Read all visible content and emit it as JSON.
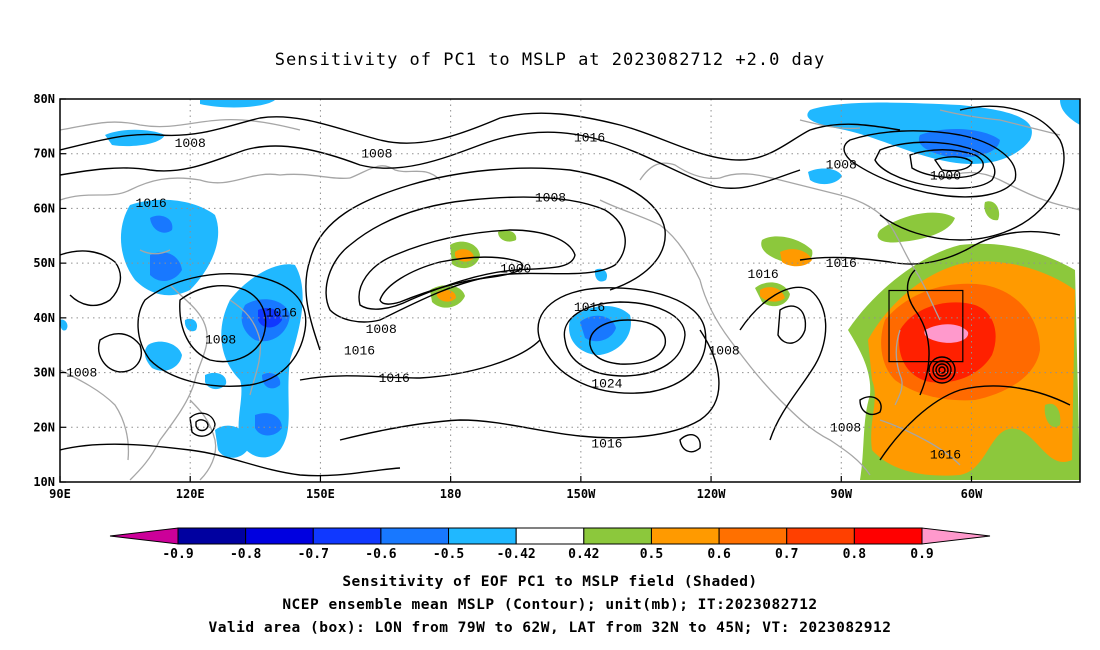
{
  "title": "Sensitivity of PC1 to MSLP at 2023082712 +2.0 day",
  "map": {
    "lon_labels": [
      "90E",
      "120E",
      "150E",
      "180",
      "150W",
      "120W",
      "90W",
      "60W"
    ],
    "lat_labels": [
      "80N",
      "70N",
      "60N",
      "50N",
      "40N",
      "30N",
      "20N",
      "10N"
    ],
    "contour_labels": [
      {
        "text": "1008",
        "lon": 120,
        "lat": 72
      },
      {
        "text": "1008",
        "lon": 163,
        "lat": 70
      },
      {
        "text": "1016",
        "lon": -148,
        "lat": 73
      },
      {
        "text": "1008",
        "lon": -157,
        "lat": 62
      },
      {
        "text": "1016",
        "lon": 111,
        "lat": 61
      },
      {
        "text": "1000",
        "lon": -165,
        "lat": 49
      },
      {
        "text": "1016",
        "lon": -148,
        "lat": 42
      },
      {
        "text": "1016",
        "lon": 141,
        "lat": 41
      },
      {
        "text": "1008",
        "lon": 164,
        "lat": 38
      },
      {
        "text": "1008",
        "lon": 127,
        "lat": 36
      },
      {
        "text": "1016",
        "lon": 159,
        "lat": 34
      },
      {
        "text": "1016",
        "lon": 167,
        "lat": 29
      },
      {
        "text": "1024",
        "lon": -144,
        "lat": 28
      },
      {
        "text": "1008",
        "lon": 95,
        "lat": 30
      },
      {
        "text": "1016",
        "lon": -144,
        "lat": 17
      },
      {
        "text": "1008",
        "lon": -90,
        "lat": 68
      },
      {
        "text": "1000",
        "lon": -66,
        "lat": 66
      },
      {
        "text": "1016",
        "lon": -108,
        "lat": 48
      },
      {
        "text": "1016",
        "lon": -90,
        "lat": 50
      },
      {
        "text": "1008",
        "lon": -117,
        "lat": 34
      },
      {
        "text": "1008",
        "lon": -89,
        "lat": 20
      },
      {
        "text": "1016",
        "lon": -66,
        "lat": 15
      }
    ],
    "box": {
      "lon_from": -79,
      "lon_to": -62,
      "lat_from": 32,
      "lat_to": 45
    }
  },
  "colorbar": {
    "labels": [
      "-0.9",
      "-0.8",
      "-0.7",
      "-0.6",
      "-0.5",
      "-0.42",
      "0.42",
      "0.5",
      "0.6",
      "0.7",
      "0.8",
      "0.9"
    ],
    "colors": [
      "#cc0099",
      "#0000a0",
      "#0000e0",
      "#1038ff",
      "#1878ff",
      "#20b8ff",
      "#ffffff",
      "#8cc83c",
      "#ff9a00",
      "#ff7000",
      "#ff4000",
      "#ff0000",
      "#ff99cc"
    ]
  },
  "footer": {
    "line1": "Sensitivity of EOF PC1 to MSLP field (Shaded)",
    "line2": "NCEP ensemble mean MSLP (Contour); unit(mb); IT:2023082712",
    "line3": "Valid area (box): LON from 79W to 62W, LAT from 32N to 45N; VT: 2023082912"
  }
}
